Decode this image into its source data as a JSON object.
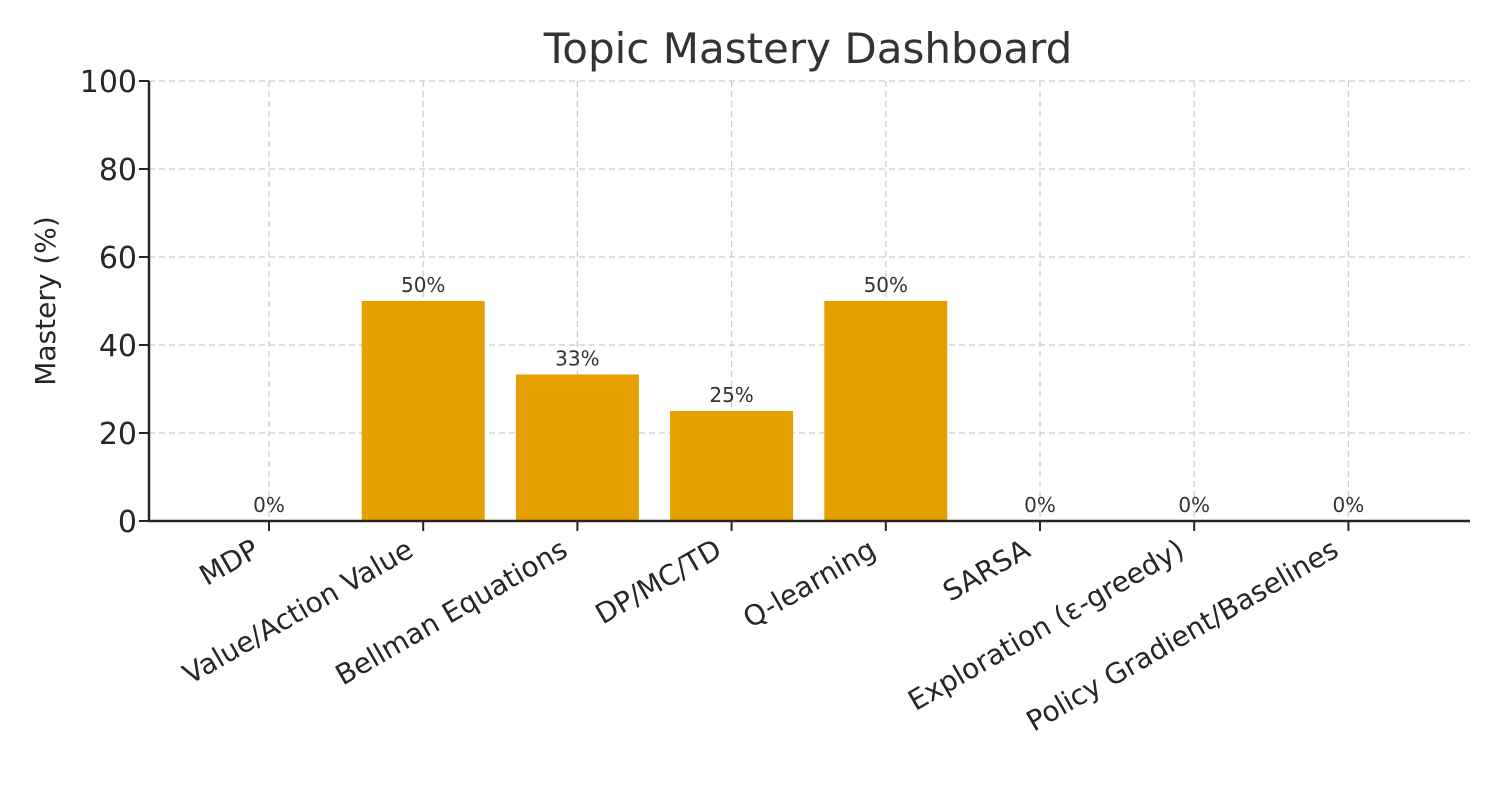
{
  "chart_data": {
    "type": "bar",
    "title": "Topic Mastery Dashboard",
    "xlabel": "",
    "ylabel": "Mastery (%)",
    "ylim": [
      0,
      100
    ],
    "yticks": [
      0,
      20,
      40,
      60,
      80,
      100
    ],
    "categories": [
      "MDP",
      "Value/Action Value",
      "Bellman Equations",
      "DP/MC/TD",
      "Q-learning",
      "SARSA",
      "Exploration (ε-greedy)",
      "Policy Gradient/Baselines"
    ],
    "values": [
      0,
      50,
      33.3,
      25,
      50,
      0,
      0,
      0
    ],
    "value_labels": [
      "0%",
      "50%",
      "33%",
      "25%",
      "50%",
      "0%",
      "0%",
      "0%"
    ],
    "grid": true,
    "bar_color": "#E5A000"
  }
}
